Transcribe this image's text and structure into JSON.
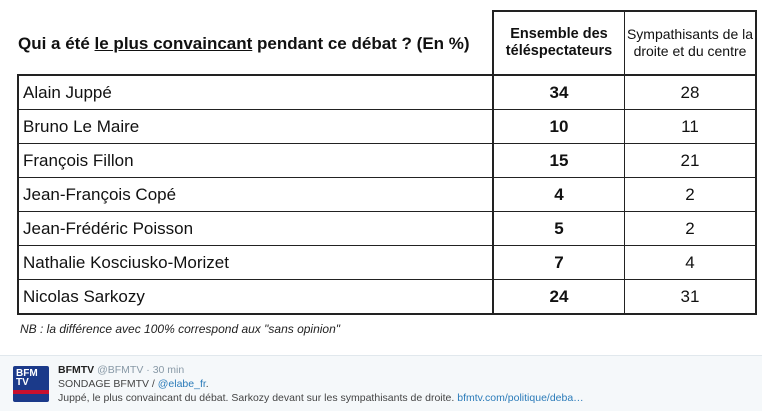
{
  "question": {
    "before": "Qui a été ",
    "underlined": "le plus convaincant",
    "after": " pendant ce débat ? (En %)"
  },
  "table": {
    "col1_header": "Ensemble des téléspectateurs",
    "col2_header": "Sympathisants de la droite et du centre",
    "rows": [
      {
        "name": "Alain Juppé",
        "all": "34",
        "right": "28"
      },
      {
        "name": "Bruno Le Maire",
        "all": "10",
        "right": "11"
      },
      {
        "name": "François Fillon",
        "all": "15",
        "right": "21"
      },
      {
        "name": "Jean-François Copé",
        "all": "4",
        "right": "2"
      },
      {
        "name": "Jean-Frédéric Poisson",
        "all": "5",
        "right": "2"
      },
      {
        "name": "Nathalie Kosciusko-Morizet",
        "all": "7",
        "right": "4"
      },
      {
        "name": "Nicolas Sarkozy",
        "all": "24",
        "right": "31"
      }
    ]
  },
  "note": "NB : la différence avec 100% correspond aux \"sans opinion\"",
  "tweet": {
    "avatar_text": "BFM TV",
    "name": "BFMTV",
    "handle": "@BFMTV",
    "separator": "·",
    "time": "30 min",
    "line1_text": "SONDAGE BFMTV / ",
    "line1_mention": "@elabe_fr",
    "line1_end": ".",
    "line2_text": "Juppé, le plus convaincant du débat. Sarkozy devant sur les sympathisants de droite. ",
    "line2_link": "bfmtv.com/politique/deba…"
  },
  "colors": {
    "brand": "#1b3a8a",
    "accent_red": "#c8102e",
    "link": "#2b7bb9"
  }
}
